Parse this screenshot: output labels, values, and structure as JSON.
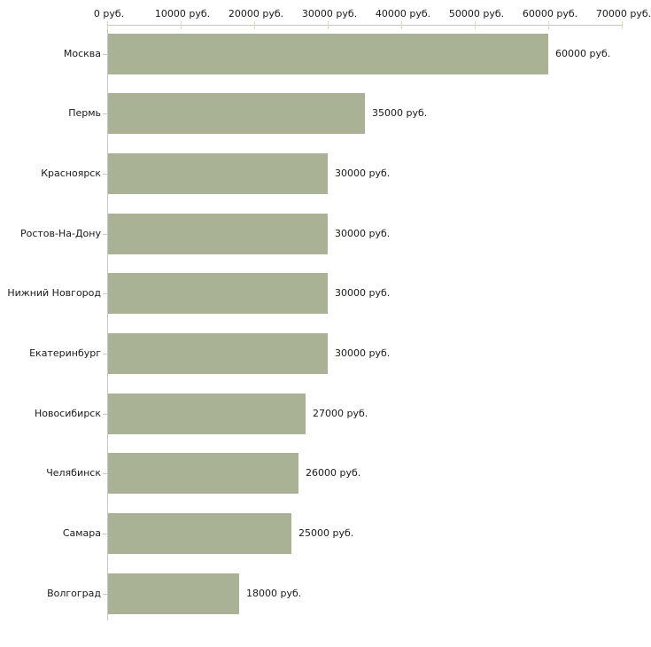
{
  "chart_data": {
    "type": "bar",
    "orientation": "horizontal",
    "title": "",
    "categories": [
      "Москва",
      "Пермь",
      "Красноярск",
      "Ростов-На-Дону",
      "Нижний Новгород",
      "Екатеринбург",
      "Новосибирск",
      "Челябинск",
      "Самара",
      "Волгоград"
    ],
    "values": [
      60000,
      35000,
      30000,
      30000,
      30000,
      30000,
      27000,
      26000,
      25000,
      18000
    ],
    "value_labels": [
      "60000 руб.",
      "35000 руб.",
      "30000 руб.",
      "30000 руб.",
      "30000 руб.",
      "30000 руб.",
      "27000 руб.",
      "26000 руб.",
      "25000 руб.",
      "18000 руб."
    ],
    "x_axis": {
      "min": 0,
      "max": 70000,
      "tick_step": 10000,
      "position": "top",
      "tick_labels": [
        "0 руб.",
        "10000 руб.",
        "20000 руб.",
        "30000 руб.",
        "40000 руб.",
        "50000 руб.",
        "60000 руб.",
        "70000 руб."
      ]
    },
    "grid": false,
    "legend": false,
    "colors": {
      "bar": "#aab295",
      "axis_line": "#c6c6c6",
      "tick_mark": "#d9d9b3",
      "category_tick": "#c9c9c9",
      "text": "#1a1a1a",
      "background": "#ffffff"
    }
  }
}
